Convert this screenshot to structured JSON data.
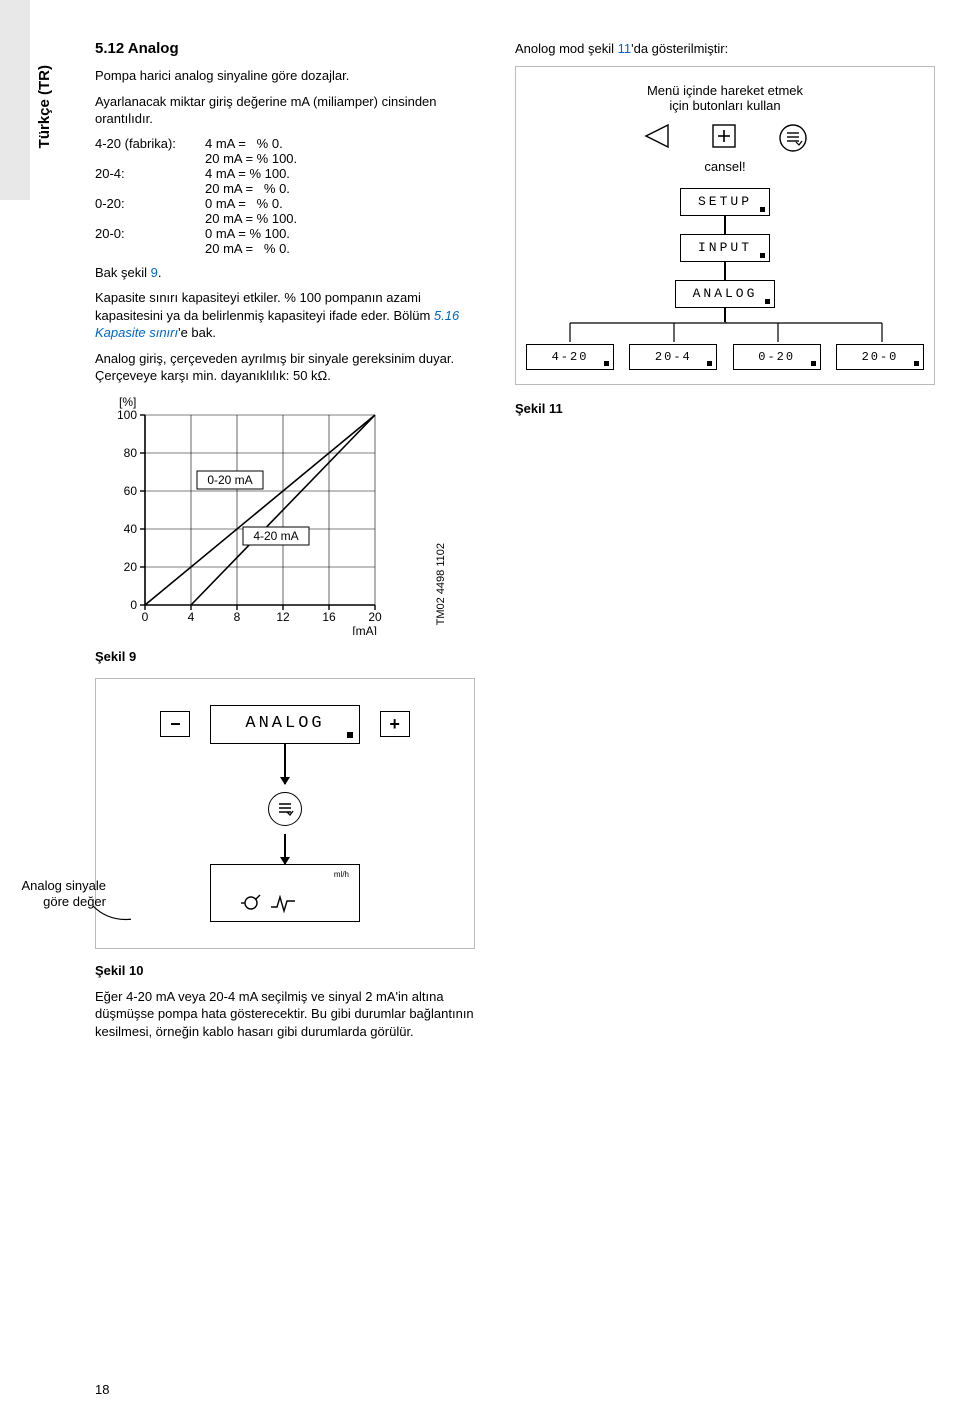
{
  "side_label": "Türkçe (TR)",
  "section_heading": "5.12 Analog",
  "intro1": "Pompa harici analog sinyaline göre dozajlar.",
  "intro2": "Ayarlanacak miktar giriş değerine mA (miliamper) cinsinden orantılıdır.",
  "mappings": [
    {
      "label": "4-20 (fabrika):",
      "l1": "4 mA =   % 0.",
      "l2": "20 mA = % 100."
    },
    {
      "label": "20-4:",
      "l1": "4 mA = % 100.",
      "l2": "20 mA =   % 0."
    },
    {
      "label": "0-20:",
      "l1": "0 mA =   % 0.",
      "l2": "20 mA = % 100."
    },
    {
      "label": "20-0:",
      "l1": "0 mA = % 100.",
      "l2": "20 mA =   % 0."
    }
  ],
  "bak_sekil": "Bak şekil ",
  "bak_sekil_num": "9",
  "bak_sekil_dot": ".",
  "para_kap": "Kapasite sınırı kapasiteyi etkiler. % 100 pompanın azami kapasitesini ya da belirlenmiş kapasiteyi ifade eder. Bölüm ",
  "para_kap_link": "5.16 Kapasite sınırı",
  "para_kap_tail": "'e bak.",
  "para_analog": "Analog giriş, çerçeveden ayrılmış bir sinyale gereksinim duyar. Çerçeveye karşı min. dayanıklılık: 50 kΩ.",
  "chart": {
    "y_unit": "[%]",
    "x_unit": "[mA]",
    "y_ticks": [
      "0",
      "20",
      "40",
      "60",
      "80",
      "100"
    ],
    "x_ticks": [
      "0",
      "4",
      "8",
      "12",
      "16",
      "20"
    ],
    "label_020": "0-20 mA",
    "label_420": "4-20 mA",
    "side_code": "TM02 4498 1102"
  },
  "fig9": "Şekil 9",
  "right_intro": "Anolog mod şekil ",
  "right_intro_link": "11",
  "right_intro_tail": "'da gösterilmiştir:",
  "menu_hint1": "Menü içinde hareket etmek",
  "menu_hint2": "için butonları kullan",
  "cancel": "cansel!",
  "flow": {
    "n1": "SETUP",
    "n2": "INPUT",
    "n3": "ANALOG",
    "leaves": [
      "4-20",
      "20-4",
      "0-20",
      "20-0"
    ]
  },
  "fig11": "Şekil 11",
  "ad_label": "ANALOG",
  "ad_unit": "ml/h",
  "ad_value_label": "Analog sinyale\ngöre değer",
  "fig10": "Şekil 10",
  "bottom_para": "Eğer 4-20 mA veya 20-4 mA seçilmiş ve sinyal 2 mA'in altına düşmüşse pompa hata gösterecektir. Bu gibi durumlar bağlantının kesilmesi, örneğin kablo hasarı gibi durumlarda görülür.",
  "page_number": "18"
}
